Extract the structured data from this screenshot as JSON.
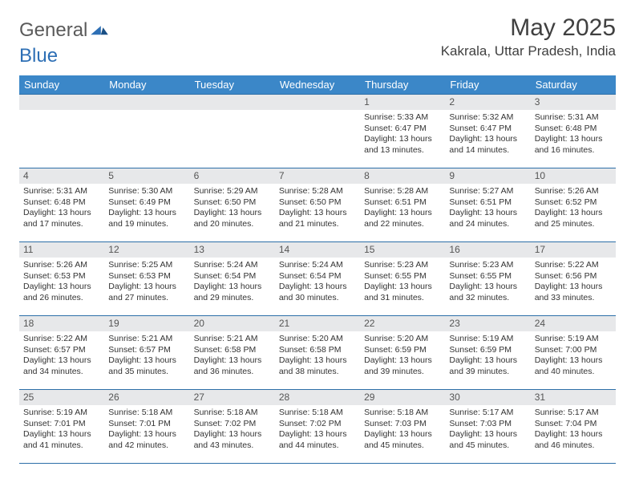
{
  "logo": {
    "text1": "General",
    "text2": "Blue"
  },
  "title": "May 2025",
  "location": "Kakrala, Uttar Pradesh, India",
  "colors": {
    "header_bg": "#3b87c8",
    "header_text": "#ffffff",
    "daynum_bg": "#e7e8ea",
    "border": "#2d6fa8",
    "title_color": "#404040",
    "logo_gray": "#5a5a5a",
    "logo_blue": "#2d6fb5"
  },
  "weekdays": [
    "Sunday",
    "Monday",
    "Tuesday",
    "Wednesday",
    "Thursday",
    "Friday",
    "Saturday"
  ],
  "weeks": [
    [
      null,
      null,
      null,
      null,
      {
        "n": "1",
        "r": "5:33 AM",
        "s": "6:47 PM",
        "d": "13 hours and 13 minutes."
      },
      {
        "n": "2",
        "r": "5:32 AM",
        "s": "6:47 PM",
        "d": "13 hours and 14 minutes."
      },
      {
        "n": "3",
        "r": "5:31 AM",
        "s": "6:48 PM",
        "d": "13 hours and 16 minutes."
      }
    ],
    [
      {
        "n": "4",
        "r": "5:31 AM",
        "s": "6:48 PM",
        "d": "13 hours and 17 minutes."
      },
      {
        "n": "5",
        "r": "5:30 AM",
        "s": "6:49 PM",
        "d": "13 hours and 19 minutes."
      },
      {
        "n": "6",
        "r": "5:29 AM",
        "s": "6:50 PM",
        "d": "13 hours and 20 minutes."
      },
      {
        "n": "7",
        "r": "5:28 AM",
        "s": "6:50 PM",
        "d": "13 hours and 21 minutes."
      },
      {
        "n": "8",
        "r": "5:28 AM",
        "s": "6:51 PM",
        "d": "13 hours and 22 minutes."
      },
      {
        "n": "9",
        "r": "5:27 AM",
        "s": "6:51 PM",
        "d": "13 hours and 24 minutes."
      },
      {
        "n": "10",
        "r": "5:26 AM",
        "s": "6:52 PM",
        "d": "13 hours and 25 minutes."
      }
    ],
    [
      {
        "n": "11",
        "r": "5:26 AM",
        "s": "6:53 PM",
        "d": "13 hours and 26 minutes."
      },
      {
        "n": "12",
        "r": "5:25 AM",
        "s": "6:53 PM",
        "d": "13 hours and 27 minutes."
      },
      {
        "n": "13",
        "r": "5:24 AM",
        "s": "6:54 PM",
        "d": "13 hours and 29 minutes."
      },
      {
        "n": "14",
        "r": "5:24 AM",
        "s": "6:54 PM",
        "d": "13 hours and 30 minutes."
      },
      {
        "n": "15",
        "r": "5:23 AM",
        "s": "6:55 PM",
        "d": "13 hours and 31 minutes."
      },
      {
        "n": "16",
        "r": "5:23 AM",
        "s": "6:55 PM",
        "d": "13 hours and 32 minutes."
      },
      {
        "n": "17",
        "r": "5:22 AM",
        "s": "6:56 PM",
        "d": "13 hours and 33 minutes."
      }
    ],
    [
      {
        "n": "18",
        "r": "5:22 AM",
        "s": "6:57 PM",
        "d": "13 hours and 34 minutes."
      },
      {
        "n": "19",
        "r": "5:21 AM",
        "s": "6:57 PM",
        "d": "13 hours and 35 minutes."
      },
      {
        "n": "20",
        "r": "5:21 AM",
        "s": "6:58 PM",
        "d": "13 hours and 36 minutes."
      },
      {
        "n": "21",
        "r": "5:20 AM",
        "s": "6:58 PM",
        "d": "13 hours and 38 minutes."
      },
      {
        "n": "22",
        "r": "5:20 AM",
        "s": "6:59 PM",
        "d": "13 hours and 39 minutes."
      },
      {
        "n": "23",
        "r": "5:19 AM",
        "s": "6:59 PM",
        "d": "13 hours and 39 minutes."
      },
      {
        "n": "24",
        "r": "5:19 AM",
        "s": "7:00 PM",
        "d": "13 hours and 40 minutes."
      }
    ],
    [
      {
        "n": "25",
        "r": "5:19 AM",
        "s": "7:01 PM",
        "d": "13 hours and 41 minutes."
      },
      {
        "n": "26",
        "r": "5:18 AM",
        "s": "7:01 PM",
        "d": "13 hours and 42 minutes."
      },
      {
        "n": "27",
        "r": "5:18 AM",
        "s": "7:02 PM",
        "d": "13 hours and 43 minutes."
      },
      {
        "n": "28",
        "r": "5:18 AM",
        "s": "7:02 PM",
        "d": "13 hours and 44 minutes."
      },
      {
        "n": "29",
        "r": "5:18 AM",
        "s": "7:03 PM",
        "d": "13 hours and 45 minutes."
      },
      {
        "n": "30",
        "r": "5:17 AM",
        "s": "7:03 PM",
        "d": "13 hours and 45 minutes."
      },
      {
        "n": "31",
        "r": "5:17 AM",
        "s": "7:04 PM",
        "d": "13 hours and 46 minutes."
      }
    ]
  ],
  "labels": {
    "sunrise": "Sunrise:",
    "sunset": "Sunset:",
    "daylight": "Daylight:"
  }
}
